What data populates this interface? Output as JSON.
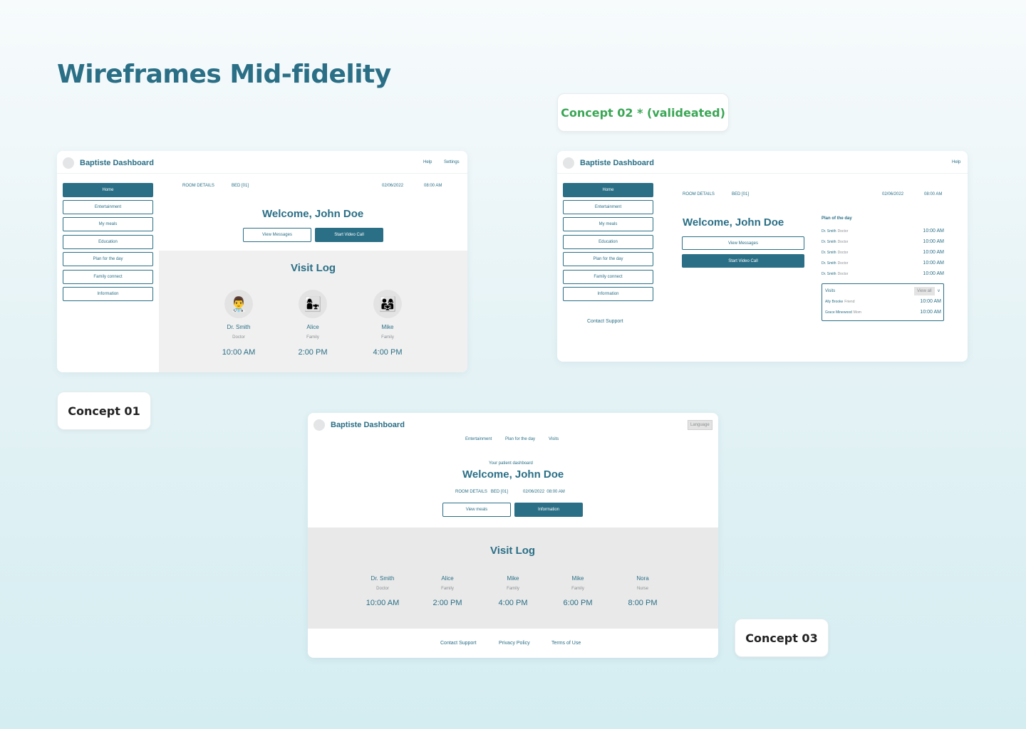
{
  "page": {
    "title": "Wireframes Mid-fidelity",
    "concept1_tag": "Concept 01",
    "concept2_tag": "Concept 02 * (valideated)",
    "concept3_tag": "Concept 03"
  },
  "colors": {
    "primary": "#2a6f86",
    "validated": "#3aa655",
    "panel": "#f0f0f0"
  },
  "c1": {
    "brand": "Baptiste Dashboard",
    "nav": [
      "Help",
      "Settings"
    ],
    "sidebar": [
      "Home",
      "Entertainment",
      "My meals",
      "Education",
      "Plan for the day",
      "Family connect",
      "Information"
    ],
    "room_details": "ROOM DETAILS",
    "bed": "BED [01]",
    "date": "02/06/2022",
    "time": "08:00 AM",
    "welcome": "Welcome, John Doe",
    "btn_messages": "View Messages",
    "btn_video": "Start Video Call",
    "visit_title": "Visit Log",
    "visits": [
      {
        "icon": "doctor-icon",
        "glyph": "👨‍⚕️",
        "name": "Dr. Smith",
        "role": "Doctor",
        "time": "10:00 AM"
      },
      {
        "icon": "family-member-icon",
        "glyph": "👩‍👧",
        "name": "Alice",
        "role": "Family",
        "time": "2:00 PM"
      },
      {
        "icon": "family-group-icon",
        "glyph": "👨‍👩‍👧",
        "name": "Mike",
        "role": "Family",
        "time": "4:00 PM"
      }
    ]
  },
  "c2": {
    "brand": "Baptiste Dashboard",
    "help": "Help",
    "sidebar": [
      "Home",
      "Entertainment",
      "My meals",
      "Education",
      "Plan for the day",
      "Family connect",
      "Information"
    ],
    "contact": "Contact Support",
    "room_details": "ROOM DETAILS",
    "bed": "BED [01]",
    "date": "02/06/2022",
    "time": "08:00 AM",
    "welcome": "Welcome, John Doe",
    "btn_messages": "View Messages",
    "btn_video": "Start Video Call",
    "plan_title": "Plan of the day",
    "plan": [
      {
        "name": "Dr. Smith",
        "role": "Doctor",
        "time": "10:00 AM"
      },
      {
        "name": "Dr. Smith",
        "role": "Doctor",
        "time": "10:00 AM"
      },
      {
        "name": "Dr. Smith",
        "role": "Doctor",
        "time": "10:00 AM"
      },
      {
        "name": "Dr. Smith",
        "role": "Doctor",
        "time": "10:00 AM"
      },
      {
        "name": "Dr. Smith",
        "role": "Doctor",
        "time": "10:00 AM"
      }
    ],
    "visits_title": "Visits",
    "view_all": "View all",
    "chevron": "v",
    "visits": [
      {
        "name": "Ally Brooke",
        "role": "Friend",
        "time": "10:00 AM"
      },
      {
        "name": "Grace Minewood",
        "role": "Mom",
        "time": "10:00 AM"
      }
    ]
  },
  "c3": {
    "brand": "Baptiste Dashboard",
    "language": "Language",
    "nav": [
      "Entertainment",
      "Plan for the day",
      "Visits"
    ],
    "subtitle": "Your patient dashboard",
    "welcome": "Welcome, John Doe",
    "room_line": "ROOM DETAILS   BED [01]",
    "date_line": "02/06/2022  08:00 AM",
    "btn_meals": "View meals",
    "btn_info": "Information",
    "visit_title": "Visit Log",
    "visits": [
      {
        "name": "Dr. Smith",
        "role": "Doctor",
        "time": "10:00 AM"
      },
      {
        "name": "Alice",
        "role": "Family",
        "time": "2:00 PM"
      },
      {
        "name": "Mike",
        "role": "Family",
        "time": "4:00 PM"
      },
      {
        "name": "Mike",
        "role": "Family",
        "time": "6:00 PM"
      },
      {
        "name": "Nora",
        "role": "Nurse",
        "time": "8:00 PM"
      }
    ],
    "footer": [
      "Contact Support",
      "Privacy Policy",
      "Terms of Use"
    ]
  }
}
